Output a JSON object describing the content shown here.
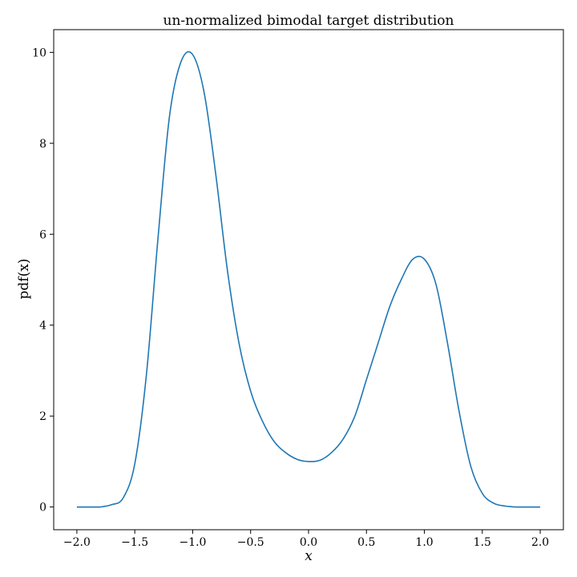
{
  "chart_data": {
    "type": "line",
    "title": "un-normalized bimodal target distribution",
    "xlabel": "x",
    "ylabel": "pdf(x)",
    "xlim": [
      -2.2,
      2.2
    ],
    "ylim": [
      -0.5,
      10.5
    ],
    "x_ticks": [
      -2.0,
      -1.5,
      -1.0,
      -0.5,
      0.0,
      0.5,
      1.0,
      1.5,
      2.0
    ],
    "x_tick_labels": [
      "−2.0",
      "−1.5",
      "−1.0",
      "−0.5",
      "0.0",
      "0.5",
      "1.0",
      "1.5",
      "2.0"
    ],
    "y_ticks": [
      0,
      2,
      4,
      6,
      8,
      10
    ],
    "y_tick_labels": [
      "0",
      "2",
      "4",
      "6",
      "8",
      "10"
    ],
    "grid": false,
    "line_color": "#1f77b4",
    "series": [
      {
        "x": [
          -2.0,
          -1.9,
          -1.8,
          -1.7,
          -1.6,
          -1.5,
          -1.4,
          -1.3,
          -1.2,
          -1.1,
          -1.0,
          -0.9,
          -0.8,
          -0.7,
          -0.6,
          -0.5,
          -0.4,
          -0.3,
          -0.2,
          -0.1,
          0.0,
          0.1,
          0.2,
          0.3,
          0.4,
          0.5,
          0.6,
          0.7,
          0.8,
          0.9,
          1.0,
          1.1,
          1.2,
          1.3,
          1.4,
          1.5,
          1.6,
          1.7,
          1.8,
          1.9,
          2.0
        ],
        "y": [
          0.0,
          0.0,
          0.0,
          0.05,
          0.2,
          0.95,
          2.9,
          5.9,
          8.6,
          9.8,
          9.95,
          9.1,
          7.3,
          5.2,
          3.6,
          2.55,
          1.9,
          1.45,
          1.2,
          1.05,
          1.0,
          1.03,
          1.2,
          1.5,
          2.0,
          2.8,
          3.6,
          4.4,
          5.0,
          5.45,
          5.45,
          4.9,
          3.6,
          2.1,
          0.9,
          0.3,
          0.08,
          0.02,
          0.0,
          0.0,
          0.0
        ]
      }
    ]
  }
}
